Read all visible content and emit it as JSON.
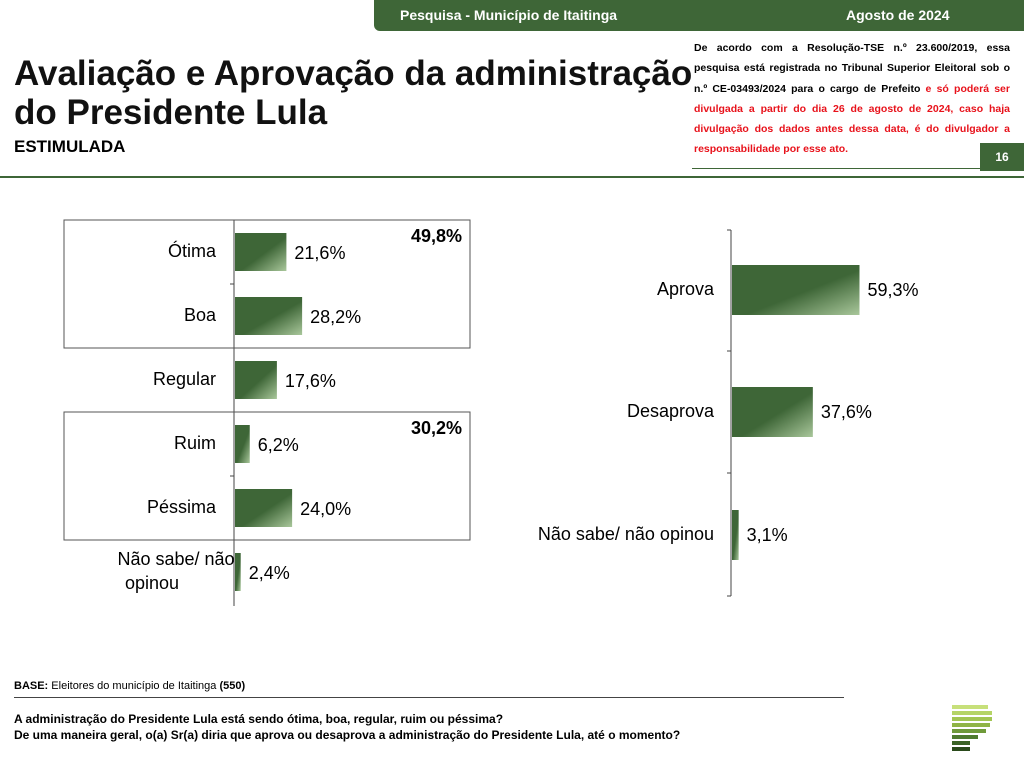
{
  "header": {
    "survey": "Pesquisa - Município de Itaitinga",
    "date": "Agosto de 2024",
    "title_line1": "Avaliação e Aprovação da administração",
    "title_line2": "do Presidente Lula",
    "subtitle": "ESTIMULADA",
    "legal_black": "De acordo com a Resolução-TSE n.º 23.600/2019, essa pesquisa está registrada no Tribunal Superior Eleitoral sob o n.º CE-03493/2024 para o cargo de Prefeito",
    "legal_red": " e só poderá ser divulgada a partir do dia 26 de agosto de 2024, caso haja divulgação dos dados antes dessa data, é do divulgador a responsabilidade por esse ato.",
    "page_number": "16"
  },
  "chart_data": [
    {
      "type": "bar",
      "orientation": "horizontal",
      "categories": [
        "Ótima",
        "Boa",
        "Regular",
        "Ruim",
        "Péssima",
        "Não sabe/ não opinou"
      ],
      "values": [
        21.6,
        28.2,
        17.6,
        6.2,
        24.0,
        2.4
      ],
      "value_labels": [
        "21,6%",
        "28,2%",
        "17,6%",
        "6,2%",
        "24,0%",
        "2,4%"
      ],
      "groups": [
        {
          "label": "49,8%",
          "members": [
            "Ótima",
            "Boa"
          ]
        },
        {
          "label": "30,2%",
          "members": [
            "Ruim",
            "Péssima"
          ]
        }
      ],
      "bar_color": "#3e6637"
    },
    {
      "type": "bar",
      "orientation": "horizontal",
      "categories": [
        "Aprova",
        "Desaprova",
        "Não sabe/ não opinou"
      ],
      "values": [
        59.3,
        37.6,
        3.1
      ],
      "value_labels": [
        "59,3%",
        "37,6%",
        "3,1%"
      ],
      "bar_color": "#3e6637"
    }
  ],
  "footer": {
    "base_label": "BASE:",
    "base_text": " Eleitores do município de Itaitinga ",
    "base_n": "(550)",
    "question1": "A administração do Presidente Lula está sendo ótima, boa, regular, ruim ou péssima?",
    "question2": "De uma maneira geral, o(a) Sr(a) diria que aprova ou desaprova a administração do Presidente Lula, até o momento?"
  }
}
